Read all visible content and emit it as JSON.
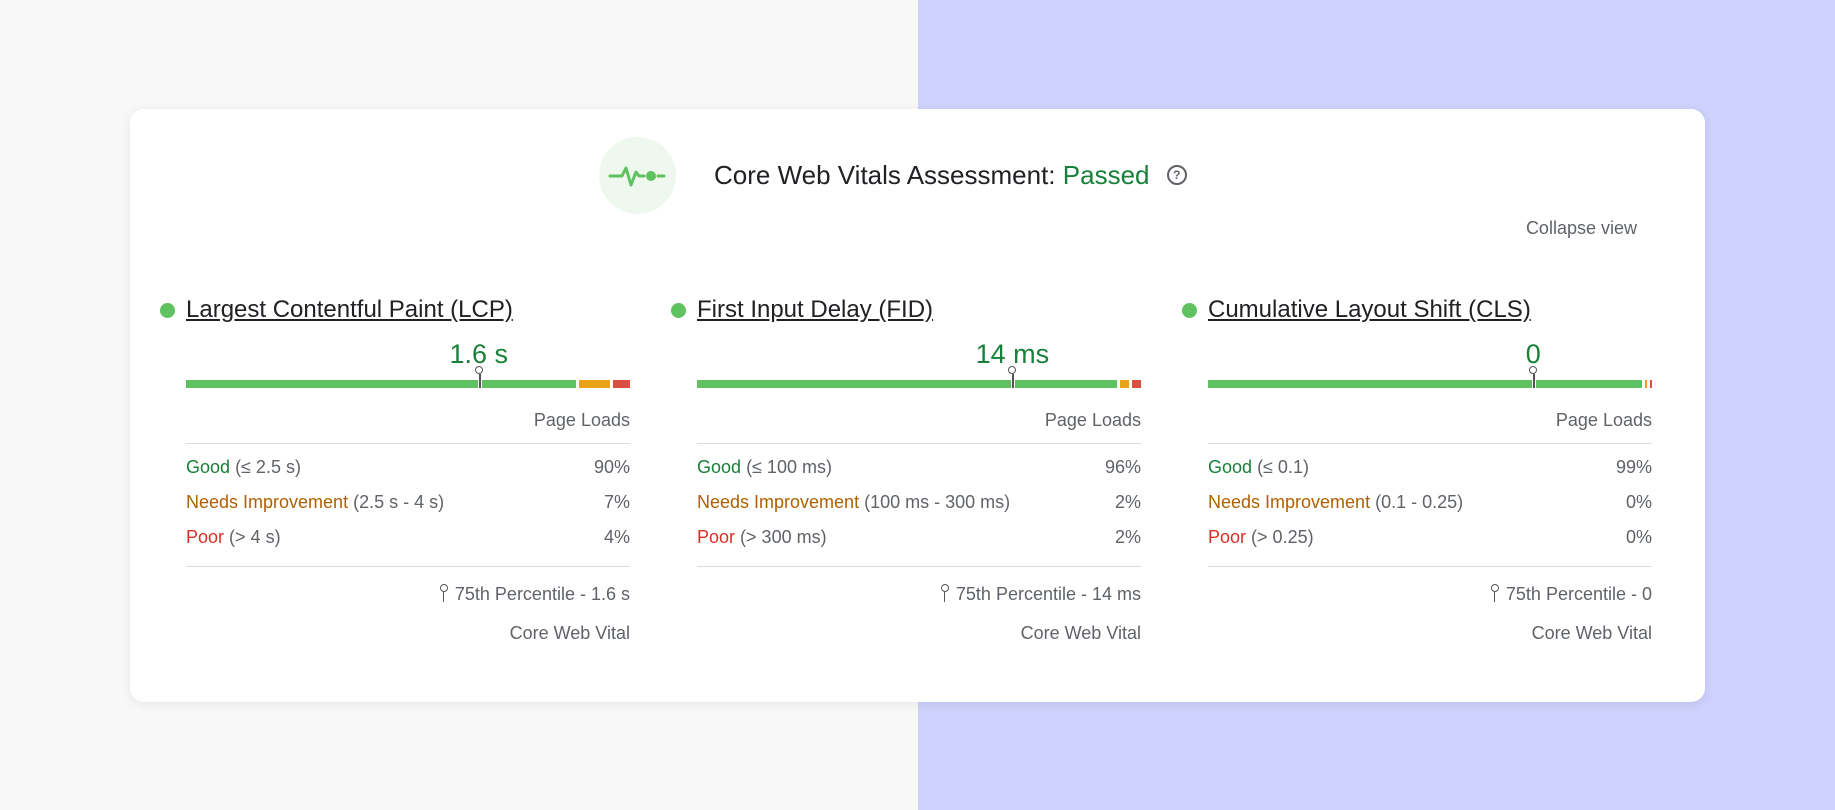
{
  "header": {
    "title_prefix": "Core Web Vitals Assessment:",
    "status": "Passed",
    "help_icon": "question-circle-icon",
    "pulse_icon": "heartbeat-pulse-icon",
    "collapse_label": "Collapse view"
  },
  "colors": {
    "good": "#188038",
    "needs_improvement": "#b06000",
    "poor": "#d93025",
    "bar_good": "#5fc15f",
    "bar_ni": "#eaa21a",
    "bar_poor": "#d9503f"
  },
  "metrics": [
    {
      "title": "Largest Contentful Paint (LCP)",
      "value": "1.6 s",
      "distribution": {
        "good": 0.9,
        "ni": 0.07,
        "poor": 0.04
      },
      "percentile_position": 0.75,
      "page_loads": "Page Loads",
      "good_label": "Good",
      "good_range": "(≤ 2.5 s)",
      "good_pct": "90%",
      "ni_label": "Needs Improvement",
      "ni_range": "(2.5 s - 4 s)",
      "ni_pct": "7%",
      "poor_label": "Poor",
      "poor_range": "(> 4 s)",
      "poor_pct": "4%",
      "percentile_text": "75th Percentile - 1.6 s",
      "core_label": "Core Web Vital"
    },
    {
      "title": "First Input Delay (FID)",
      "value": "14 ms",
      "distribution": {
        "good": 0.96,
        "ni": 0.02,
        "poor": 0.02
      },
      "percentile_position": 0.75,
      "page_loads": "Page Loads",
      "good_label": "Good",
      "good_range": "(≤ 100 ms)",
      "good_pct": "96%",
      "ni_label": "Needs Improvement",
      "ni_range": "(100 ms - 300 ms)",
      "ni_pct": "2%",
      "poor_label": "Poor",
      "poor_range": "(> 300 ms)",
      "poor_pct": "2%",
      "percentile_text": "75th Percentile - 14 ms",
      "core_label": "Core Web Vital"
    },
    {
      "title": "Cumulative Layout Shift (CLS)",
      "value": "0",
      "distribution": {
        "good": 0.99,
        "ni": 0.005,
        "poor": 0.005
      },
      "percentile_position": 0.75,
      "page_loads": "Page Loads",
      "good_label": "Good",
      "good_range": "(≤ 0.1)",
      "good_pct": "99%",
      "ni_label": "Needs Improvement",
      "ni_range": "(0.1 - 0.25)",
      "ni_pct": "0%",
      "poor_label": "Poor",
      "poor_range": "(> 0.25)",
      "poor_pct": "0%",
      "percentile_text": "75th Percentile - 0",
      "core_label": "Core Web Vital"
    }
  ]
}
